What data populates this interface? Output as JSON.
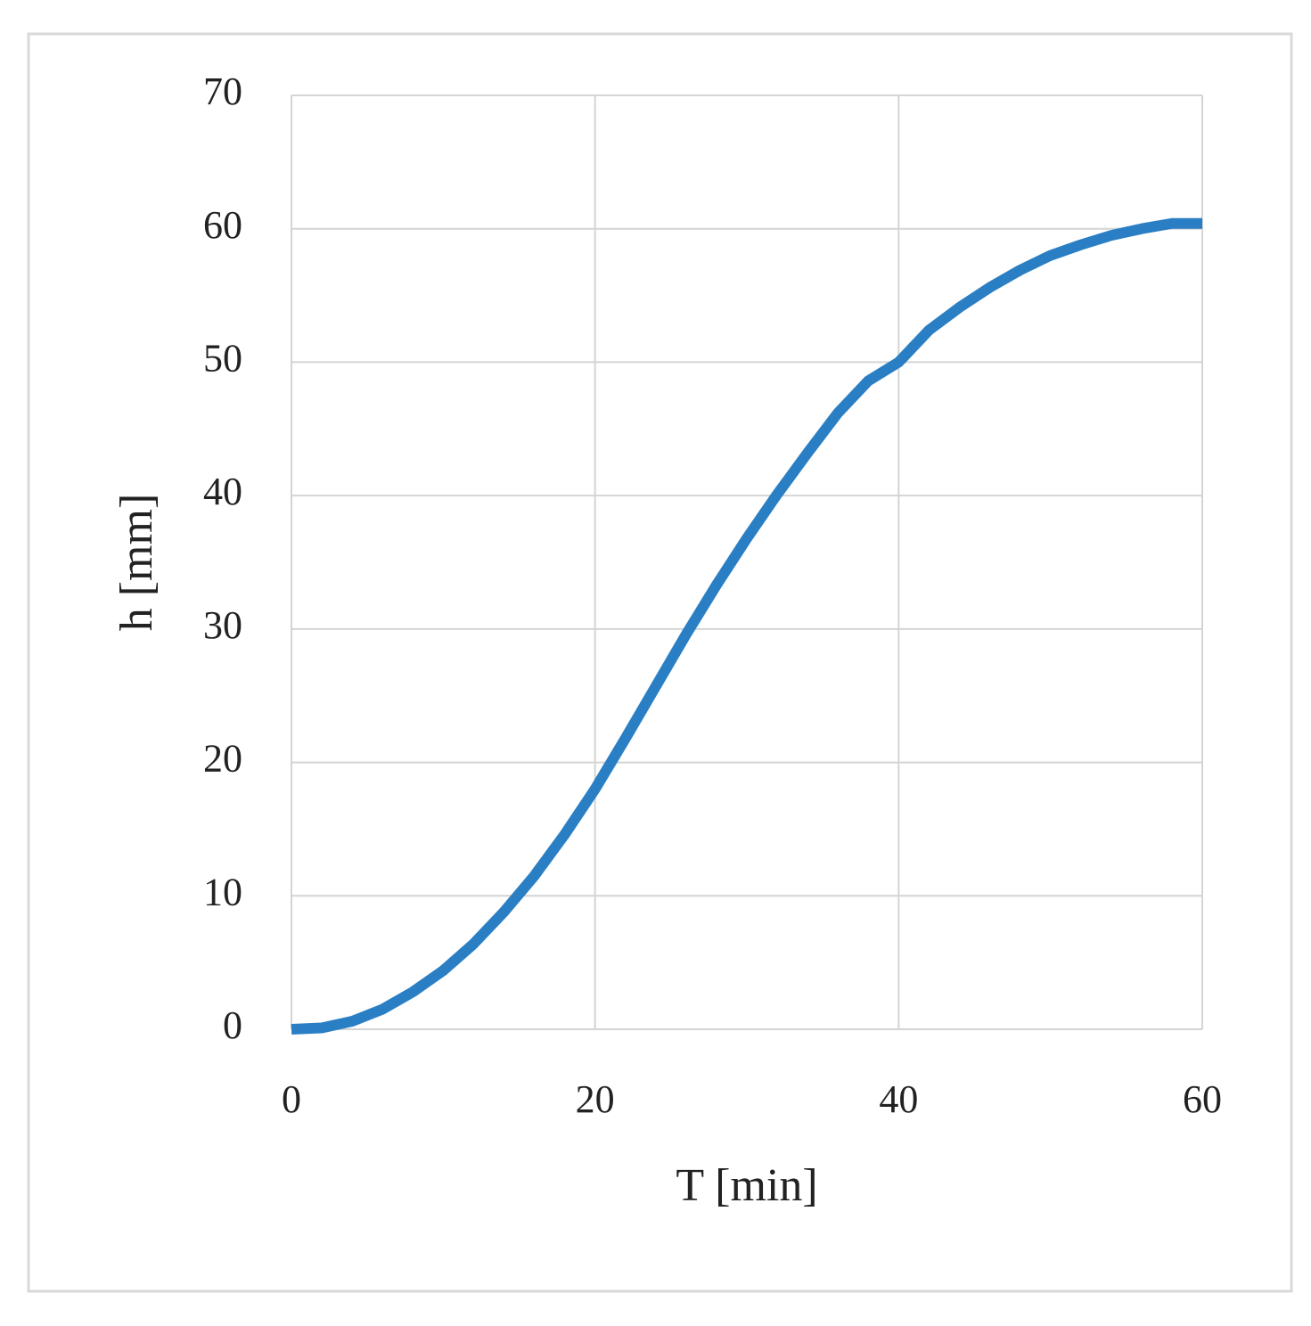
{
  "chart_data": {
    "type": "line",
    "x_label": "T [min]",
    "y_label": "h [mm]",
    "x": [
      0,
      2,
      4,
      6,
      8,
      10,
      12,
      14,
      16,
      18,
      20,
      22,
      24,
      26,
      28,
      30,
      32,
      34,
      36,
      38,
      40,
      42,
      44,
      46,
      48,
      50,
      52,
      54,
      56,
      58,
      60
    ],
    "values": [
      0,
      0.1,
      0.6,
      1.5,
      2.8,
      4.4,
      6.4,
      8.8,
      11.5,
      14.6,
      18.0,
      21.8,
      25.7,
      29.6,
      33.3,
      36.8,
      40.1,
      43.2,
      46.2,
      48.6,
      50.0,
      52.4,
      54.1,
      55.6,
      56.9,
      58.0,
      58.8,
      59.5,
      60.0,
      60.4,
      60.4
    ],
    "color": "#2a7fc4",
    "xlim": [
      0,
      60
    ],
    "xticks": [
      0,
      20,
      40,
      60
    ],
    "ylim": [
      0,
      70
    ],
    "yticks": [
      0,
      10,
      20,
      30,
      40,
      50,
      60,
      70
    ],
    "grid": true
  }
}
